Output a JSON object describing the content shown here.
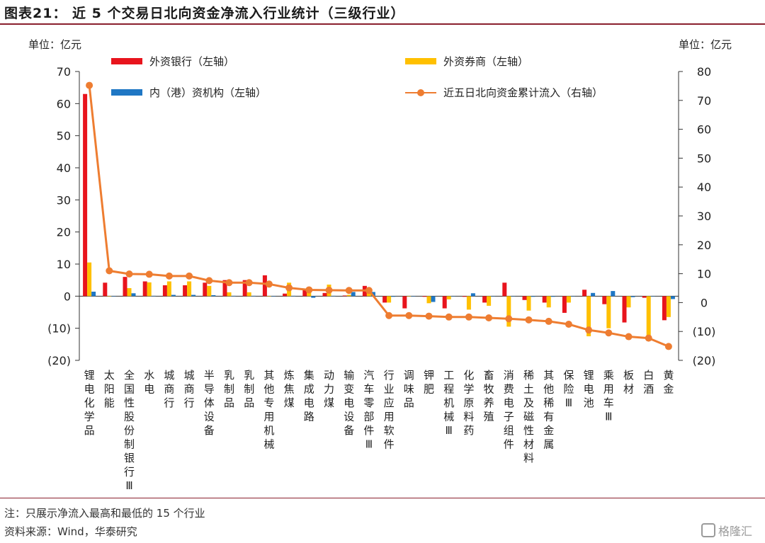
{
  "title": "图表21： 近 5 个交易日北向资金净流入行业统计（三级行业）",
  "left_unit": "单位：亿元",
  "right_unit": "单位：亿元",
  "note": "注：只展示净流入最高和最低的 15 个行业",
  "source": "资料来源：Wind，华泰研究",
  "watermark": "格隆汇",
  "colors": {
    "foreign_bank": "#e8141d",
    "foreign_broker": "#ffc000",
    "hk_institution": "#1f77c4",
    "cumulative": "#ee7d31",
    "rule": "#8a1f2d"
  },
  "chart_data": {
    "type": "bar",
    "categories": [
      "锂电化学品",
      "太阳能",
      "全国性股份制银行Ⅲ",
      "水电",
      "城商行",
      "城商行",
      "半导体设备",
      "乳制品",
      "乳制品",
      "其他专用机械",
      "炼焦煤",
      "集成电路",
      "动力煤",
      "输变电设备",
      "汽车零部件Ⅲ",
      "行业应用软件",
      "调味品",
      "钾肥",
      "工程机械Ⅲ",
      "化学原料药",
      "畜牧养殖",
      "消费电子组件",
      "稀土及磁性材料",
      "其他稀有金属",
      "保险Ⅲ",
      "锂电池",
      "乘用车Ⅲ",
      "板材",
      "白酒",
      "黄金"
    ],
    "series": [
      {
        "name": "外资银行（左轴）",
        "axis": "left",
        "values": [
          63,
          4.2,
          6,
          4.6,
          3.4,
          3.4,
          4.2,
          5,
          5,
          6.5,
          0.8,
          2.2,
          1,
          0.2,
          3.2,
          -2,
          -3.8,
          -0.2,
          -3.8,
          -0.2,
          -2,
          4.2,
          -1.2,
          -2,
          -5.2,
          2,
          -2.5,
          -8.2,
          -0.5,
          -7.5
        ]
      },
      {
        "name": "外资券商（左轴）",
        "axis": "left",
        "values": [
          10.5,
          0,
          2.5,
          4.3,
          4.6,
          4.6,
          3.2,
          1.2,
          1.2,
          0,
          4.2,
          2.2,
          3.6,
          0.4,
          2.4,
          -2,
          0,
          -2.2,
          -1,
          -4.2,
          -3,
          -9.5,
          -4.5,
          -3.5,
          -2,
          -12.5,
          -10,
          -3.5,
          -12.5,
          -6.5
        ]
      },
      {
        "name": "内（港）资机构（左轴）",
        "axis": "left",
        "values": [
          1.4,
          0,
          0.9,
          0.1,
          0.4,
          0.4,
          0.3,
          0.1,
          0.1,
          0,
          0.1,
          -0.5,
          0.1,
          1.3,
          1.3,
          -0.2,
          0,
          -1.8,
          0,
          0.9,
          -0.1,
          -0.1,
          -0.2,
          -0.2,
          -0.1,
          1,
          1.6,
          -0.3,
          -0.1,
          -0.9
        ]
      },
      {
        "name": "近五日北向资金累计流入（右轴）",
        "axis": "right",
        "type": "line",
        "values": [
          75.2,
          11,
          9.9,
          9.8,
          9.2,
          9.2,
          7.6,
          6.9,
          6.9,
          6.4,
          5.1,
          4.4,
          4.3,
          4.2,
          4.2,
          -4.5,
          -4.5,
          -4.7,
          -5,
          -5,
          -5.3,
          -5.6,
          -6,
          -6.5,
          -7.5,
          -9.5,
          -10.5,
          -11.8,
          -12.3,
          -15.2
        ]
      }
    ],
    "left_axis": {
      "min": -20,
      "max": 70,
      "ticks": [
        -20,
        -10,
        0,
        10,
        20,
        30,
        40,
        50,
        60,
        70
      ],
      "tick_labels": [
        "(20)",
        "(10)",
        "0",
        "10",
        "20",
        "30",
        "40",
        "50",
        "60",
        "70"
      ]
    },
    "right_axis": {
      "min": -20,
      "max": 80,
      "ticks": [
        -20,
        -10,
        0,
        10,
        20,
        30,
        40,
        50,
        60,
        70,
        80
      ],
      "tick_labels": [
        "(20)",
        "(10)",
        "0",
        "10",
        "20",
        "30",
        "40",
        "50",
        "60",
        "70",
        "80"
      ]
    },
    "legend_placement": "top",
    "grid": false
  }
}
